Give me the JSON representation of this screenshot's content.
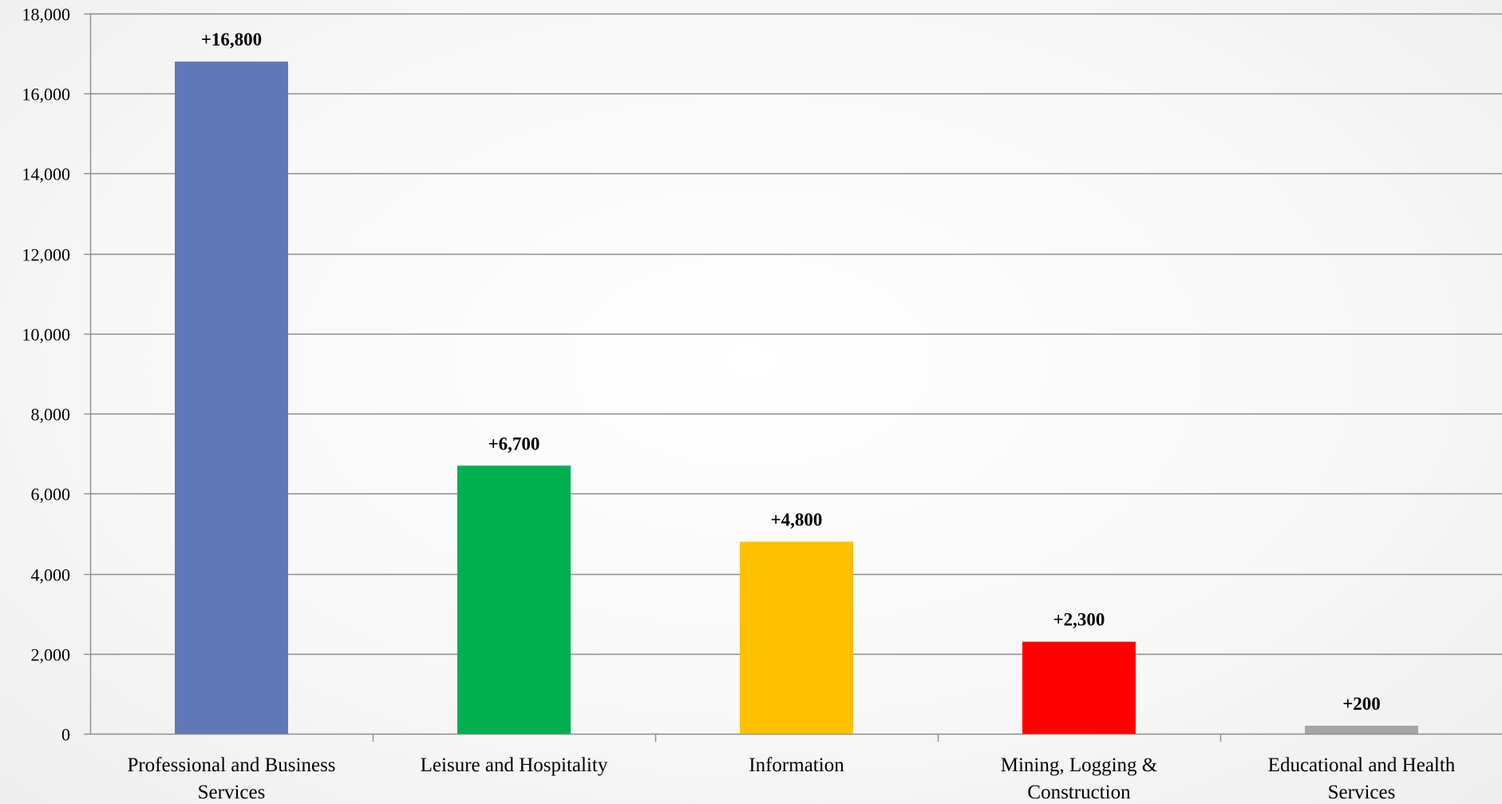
{
  "chart_data": {
    "type": "bar",
    "title": "",
    "xlabel": "",
    "ylabel": "",
    "categories": [
      [
        "Professional and Business",
        "Services"
      ],
      [
        "Leisure and Hospitality"
      ],
      [
        "Information"
      ],
      [
        "Mining, Logging &",
        "Construction"
      ],
      [
        "Educational and Health",
        "Services"
      ]
    ],
    "values": [
      16800,
      6700,
      4800,
      2300,
      200
    ],
    "data_labels": [
      "+16,800",
      "+6,700",
      "+4,800",
      "+2,300",
      "+200"
    ],
    "colors": [
      "#6178b7",
      "#00af50",
      "#ffc000",
      "#ff0000",
      "#a5a5a5"
    ],
    "ylim": [
      0,
      18000
    ],
    "yticks": [
      0,
      2000,
      4000,
      6000,
      8000,
      10000,
      12000,
      14000,
      16000,
      18000
    ],
    "ytick_labels": [
      "0",
      "2,000",
      "4,000",
      "6,000",
      "8,000",
      "10,000",
      "12,000",
      "14,000",
      "16,000",
      "18,000"
    ],
    "grid": true,
    "legend": "none"
  }
}
